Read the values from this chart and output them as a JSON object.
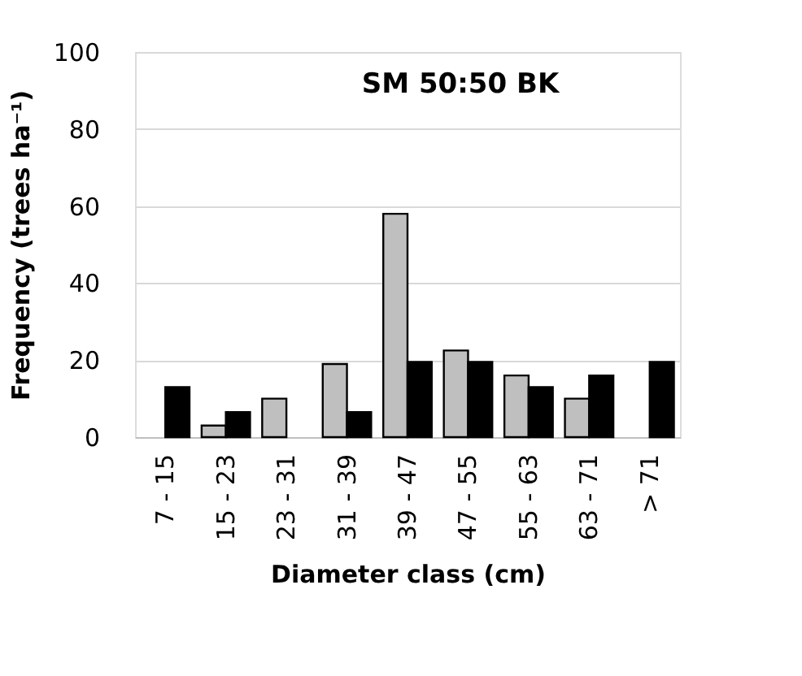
{
  "chart_data": {
    "type": "bar",
    "title": "SM 50:50 BK",
    "xlabel": "Diameter class (cm)",
    "ylabel": "Frequency (trees ha⁻¹)",
    "categories": [
      "7 - 15",
      "15 - 23",
      "23 - 31",
      "31 - 39",
      "39 - 47",
      "47 - 55",
      "55 - 63",
      "63 - 71",
      "> 71"
    ],
    "series": [
      {
        "color": "#bfbfbf",
        "values": [
          null,
          3,
          10,
          19,
          58,
          22.5,
          16,
          10,
          null
        ]
      },
      {
        "color": "#000000",
        "values": [
          13,
          6.5,
          null,
          6.5,
          19.5,
          19.5,
          13,
          16,
          19.5
        ]
      }
    ],
    "ylim": [
      0,
      100
    ],
    "yticks": [
      0,
      20,
      40,
      60,
      80,
      100
    ],
    "grid": "y",
    "legend": false
  }
}
